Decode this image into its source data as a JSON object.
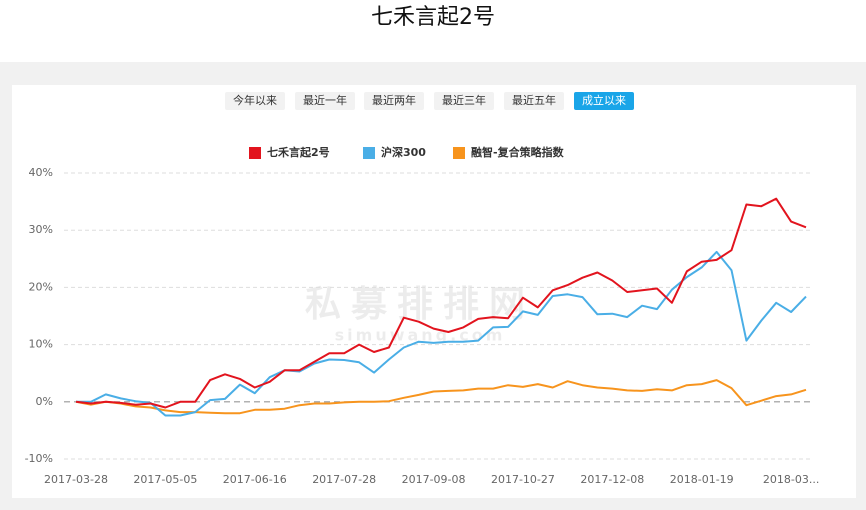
{
  "title": "七禾言起2号",
  "tabs": [
    "今年以来",
    "最近一年",
    "最近两年",
    "最近三年",
    "最近五年",
    "成立以来"
  ],
  "active_tab": 5,
  "watermark": [
    "私募排排网",
    "simuwang.com"
  ],
  "chart_data": {
    "type": "line",
    "categories": [
      "2017-03-28",
      null,
      null,
      null,
      null,
      null,
      "2017-05-05",
      null,
      null,
      null,
      null,
      null,
      "2017-06-16",
      null,
      null,
      null,
      null,
      null,
      "2017-07-28",
      null,
      null,
      null,
      null,
      null,
      "2017-09-08",
      null,
      null,
      null,
      null,
      null,
      "2017-10-27",
      null,
      null,
      null,
      null,
      null,
      "2017-12-08",
      null,
      null,
      null,
      null,
      null,
      "2018-01-19",
      null,
      null,
      null,
      null,
      null,
      "2018-03...",
      null
    ],
    "series": [
      {
        "name": "七禾言起2号",
        "color": "#e2141e",
        "values": [
          0,
          -0.3,
          0,
          -0.2,
          -0.5,
          -0.3,
          -1,
          0,
          0,
          3.8,
          4.8,
          4,
          2.5,
          3.5,
          5.5,
          5.5,
          7,
          8.5,
          8.5,
          10,
          8.7,
          9.5,
          14.7,
          14,
          12.8,
          12.2,
          13,
          14.5,
          14.8,
          14.6,
          18.2,
          16.5,
          19.5,
          20.4,
          21.7,
          22.6,
          21.2,
          19.2,
          19.5,
          19.8,
          17.3,
          22.8,
          24.5,
          24.8,
          26.5,
          34.5,
          34.2,
          35.5,
          31.5,
          30.5
        ]
      },
      {
        "name": "沪深300",
        "color": "#4aaee6",
        "values": [
          0,
          0,
          1.3,
          0.6,
          0.1,
          -0.2,
          -2.4,
          -2.4,
          -1.8,
          0.3,
          0.5,
          3,
          1.5,
          4.3,
          5.5,
          5.3,
          6.7,
          7.4,
          7.3,
          6.9,
          5.1,
          7.4,
          9.5,
          10.5,
          10.3,
          10.5,
          10.5,
          10.7,
          13,
          13.1,
          15.8,
          15.2,
          18.5,
          18.8,
          18.3,
          15.3,
          15.4,
          14.8,
          16.8,
          16.2,
          19.6,
          21.8,
          23.5,
          26.2,
          23,
          10.7,
          14.2,
          17.3,
          15.7,
          18.4
        ]
      },
      {
        "name": "融智-复合策略指数",
        "color": "#f7941d",
        "values": [
          0,
          -0.5,
          0,
          -0.3,
          -0.8,
          -1,
          -1.5,
          -1.8,
          -1.8,
          -1.9,
          -2,
          -2,
          -1.4,
          -1.4,
          -1.2,
          -0.6,
          -0.3,
          -0.3,
          -0.1,
          0,
          0,
          0.1,
          0.7,
          1.2,
          1.8,
          1.9,
          2,
          2.3,
          2.3,
          2.9,
          2.6,
          3.1,
          2.5,
          3.6,
          2.9,
          2.5,
          2.3,
          2,
          1.9,
          2.2,
          2,
          2.9,
          3.1,
          3.8,
          2.4,
          -0.6,
          0.2,
          1,
          1.3,
          2.1
        ]
      }
    ],
    "ylim": [
      -10,
      40
    ],
    "yticks": [
      {
        "value": -10,
        "label": "-10%"
      },
      {
        "value": 0,
        "label": "0%"
      },
      {
        "value": 10,
        "label": "10%"
      },
      {
        "value": 20,
        "label": "20%"
      },
      {
        "value": 30,
        "label": "30%"
      },
      {
        "value": 40,
        "label": "40%"
      }
    ],
    "grid": true,
    "legend": "top"
  }
}
